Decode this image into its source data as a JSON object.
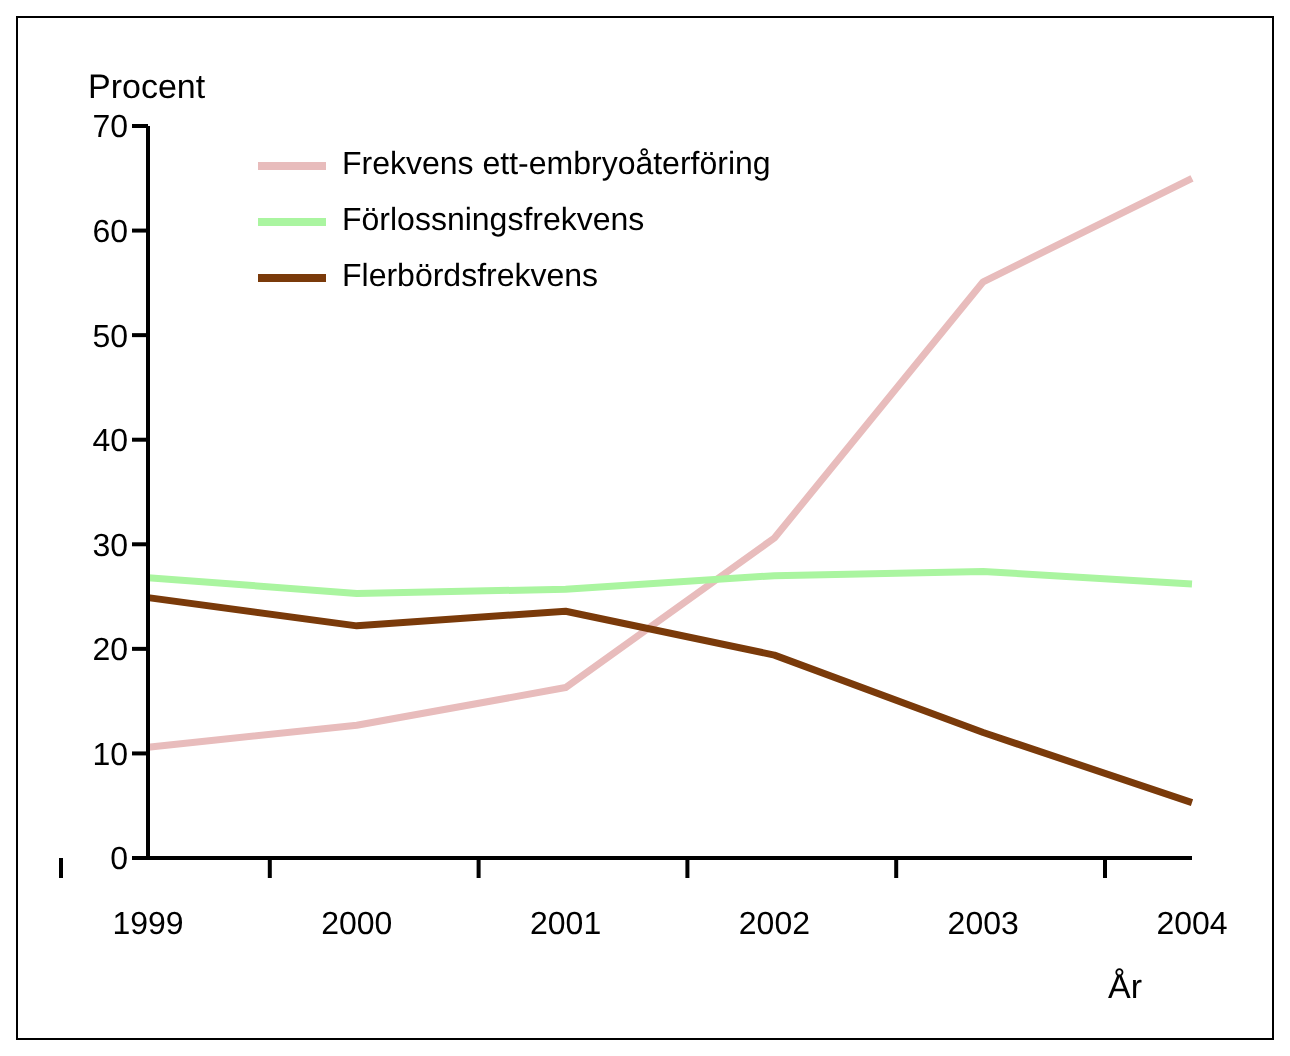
{
  "chart_data": {
    "type": "line",
    "ylabel": "Procent",
    "xlabel": "År",
    "categories": [
      "1999",
      "2000",
      "2001",
      "2002",
      "2003",
      "2004"
    ],
    "series": [
      {
        "name": "Frekvens ett-embryoåterföring",
        "color": "#e8bcbc",
        "values": [
          10.6,
          12.7,
          16.3,
          30.6,
          55.1,
          65.0
        ]
      },
      {
        "name": "Förlossningsfrekvens",
        "color": "#aaf5a0",
        "values": [
          26.8,
          25.3,
          25.7,
          27.0,
          27.4,
          26.2
        ]
      },
      {
        "name": "Flerbördsfrekvens",
        "color": "#7a3a0a",
        "values": [
          24.9,
          22.2,
          23.6,
          19.4,
          12.0,
          5.3
        ]
      }
    ],
    "ylim": [
      0,
      70
    ],
    "yticks": [
      0,
      10,
      20,
      30,
      40,
      50,
      60,
      70
    ],
    "grid": false,
    "legend": "top left",
    "marker": "none",
    "line_style": "solid"
  }
}
